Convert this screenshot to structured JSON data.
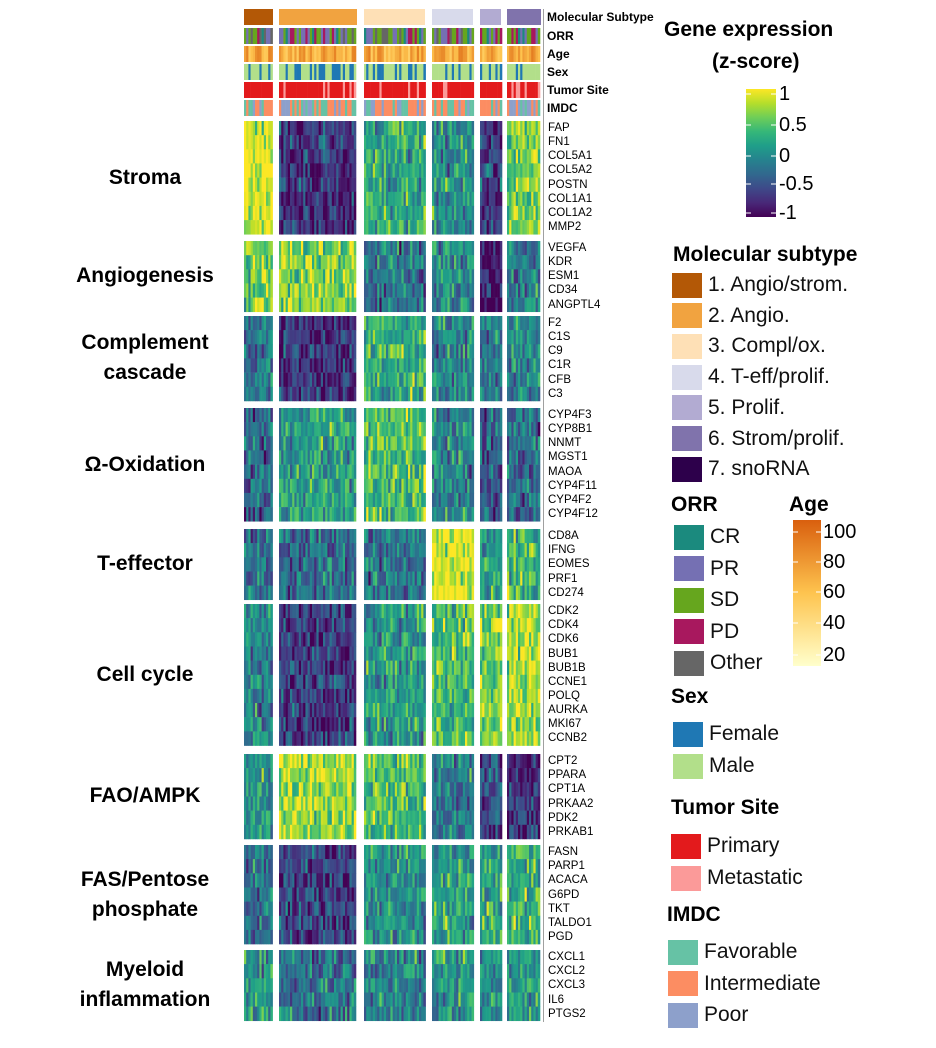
{
  "chart_data": {
    "type": "heatmap",
    "value_name": "Gene expression (z-score)",
    "subtype_group_order": [
      "1. Angio/strom.",
      "2. Angio.",
      "3. Compl/ox.",
      "4. T-eff/prolif.",
      "5. Prolif.",
      "6. Strom/prolif."
    ],
    "annotation_tracks": [
      "Molecular Subtype",
      "ORR",
      "Age",
      "Sex",
      "Tumor Site",
      "IMDC"
    ],
    "gene_groups": [
      {
        "label_lines": [
          "Stroma"
        ],
        "genes": [
          "FAP",
          "FN1",
          "COL5A1",
          "COL5A2",
          "POSTN",
          "COL1A1",
          "COL1A2",
          "MMP2"
        ],
        "mean_z_by_subtype": [
          0.9,
          -0.7,
          0.2,
          0.0,
          -0.6,
          0.6
        ]
      },
      {
        "label_lines": [
          "Angiogenesis"
        ],
        "genes": [
          "VEGFA",
          "KDR",
          "ESM1",
          "CD34",
          "ANGPTL4"
        ],
        "mean_z_by_subtype": [
          0.5,
          0.6,
          -0.2,
          0.0,
          -0.9,
          -0.2
        ]
      },
      {
        "label_lines": [
          "Complement",
          "cascade"
        ],
        "genes": [
          "F2",
          "C1S",
          "C9",
          "C1R",
          "CFB",
          "C3"
        ],
        "mean_z_by_subtype": [
          -0.2,
          -0.7,
          0.3,
          -0.1,
          -0.2,
          0.0
        ]
      },
      {
        "label_lines": [
          "Ω-Oxidation"
        ],
        "genes": [
          "CYP4F3",
          "CYP8B1",
          "NNMT",
          "MGST1",
          "MAOA",
          "CYP4F11",
          "CYP4F2",
          "CYP4F12"
        ],
        "mean_z_by_subtype": [
          -0.3,
          0.1,
          0.4,
          -0.1,
          -0.4,
          -0.3
        ]
      },
      {
        "label_lines": [
          "T-effector"
        ],
        "genes": [
          "CD8A",
          "IFNG",
          "EOMES",
          "PRF1",
          "CD274"
        ],
        "mean_z_by_subtype": [
          -0.2,
          -0.3,
          -0.2,
          0.9,
          0.1,
          0.3
        ]
      },
      {
        "label_lines": [
          "Cell cycle"
        ],
        "genes": [
          "CDK2",
          "CDK4",
          "CDK6",
          "BUB1",
          "BUB1B",
          "CCNE1",
          "POLQ",
          "AURKA",
          "MKI67",
          "CCNB2"
        ],
        "mean_z_by_subtype": [
          -0.1,
          -0.6,
          0.1,
          0.4,
          0.6,
          0.7
        ]
      },
      {
        "label_lines": [
          "FAO/AMPK"
        ],
        "genes": [
          "CPT2",
          "PPARA",
          "CPT1A",
          "PRKAA2",
          "PDK2",
          "PRKAB1"
        ],
        "mean_z_by_subtype": [
          0.0,
          0.7,
          0.4,
          -0.2,
          -0.5,
          -0.7
        ]
      },
      {
        "label_lines": [
          "FAS/Pentose",
          "phosphate"
        ],
        "genes": [
          "FASN",
          "PARP1",
          "ACACA",
          "G6PD",
          "TKT",
          "TALDO1",
          "PGD"
        ],
        "mean_z_by_subtype": [
          -0.3,
          -0.6,
          0.0,
          0.1,
          0.2,
          0.3
        ]
      },
      {
        "label_lines": [
          "Myeloid",
          "inflammation"
        ],
        "genes": [
          "CXCL1",
          "CXCL2",
          "CXCL3",
          "IL6",
          "PTGS2"
        ],
        "mean_z_by_subtype": [
          0.1,
          -0.2,
          -0.1,
          0.0,
          0.0,
          0.1
        ]
      }
    ],
    "colorbar": {
      "title_lines": [
        "Gene expression",
        "(z-score)"
      ],
      "ticks": [
        1,
        0.5,
        0,
        -0.5,
        -1
      ],
      "tick_labels": [
        "1",
        "0.5",
        "0",
        "-0.5",
        "-1"
      ],
      "range": [
        -1,
        1
      ],
      "colors": [
        "#fde725",
        "#b5de2b",
        "#6ece58",
        "#35b779",
        "#1f9e89",
        "#26828e",
        "#31688e",
        "#3e4989",
        "#482878",
        "#440154"
      ]
    },
    "legends": {
      "molecular_subtype": {
        "title": "Molecular subtype",
        "items": [
          {
            "label": "1. Angio/strom.",
            "color": "#b35806"
          },
          {
            "label": "2. Angio.",
            "color": "#f1a340"
          },
          {
            "label": "3. Compl/ox.",
            "color": "#fee0b6"
          },
          {
            "label": "4. T-eff/prolif.",
            "color": "#d8daeb"
          },
          {
            "label": "5. Prolif.",
            "color": "#b2abd2"
          },
          {
            "label": "6. Strom/prolif.",
            "color": "#8073ac"
          },
          {
            "label": "7. snoRNA",
            "color": "#2d004b"
          }
        ]
      },
      "orr": {
        "title": "ORR",
        "items": [
          {
            "label": "CR",
            "color": "#1b8a7e"
          },
          {
            "label": "PR",
            "color": "#7570b3"
          },
          {
            "label": "SD",
            "color": "#66a61e"
          },
          {
            "label": "PD",
            "color": "#a8185e"
          },
          {
            "label": "Other",
            "color": "#666666"
          }
        ]
      },
      "age": {
        "title": "Age",
        "ticks": [
          100,
          80,
          60,
          40,
          20
        ],
        "tick_labels": [
          "100",
          "80",
          "60",
          "40",
          "20"
        ],
        "range": [
          20,
          100
        ],
        "colors": [
          "#d95f0e",
          "#fec44f",
          "#ffffcc"
        ]
      },
      "sex": {
        "title": "Sex",
        "items": [
          {
            "label": "Female",
            "color": "#1f78b4"
          },
          {
            "label": "Male",
            "color": "#b2df8a"
          }
        ]
      },
      "tumor_site": {
        "title": "Tumor Site",
        "items": [
          {
            "label": "Primary",
            "color": "#e31a1c"
          },
          {
            "label": "Metastatic",
            "color": "#fb9a99"
          }
        ]
      },
      "imdc": {
        "title": "IMDC",
        "items": [
          {
            "label": "Favorable",
            "color": "#66c2a5"
          },
          {
            "label": "Intermediate",
            "color": "#fc8d62"
          },
          {
            "label": "Poor",
            "color": "#8da0cb"
          }
        ]
      }
    }
  }
}
